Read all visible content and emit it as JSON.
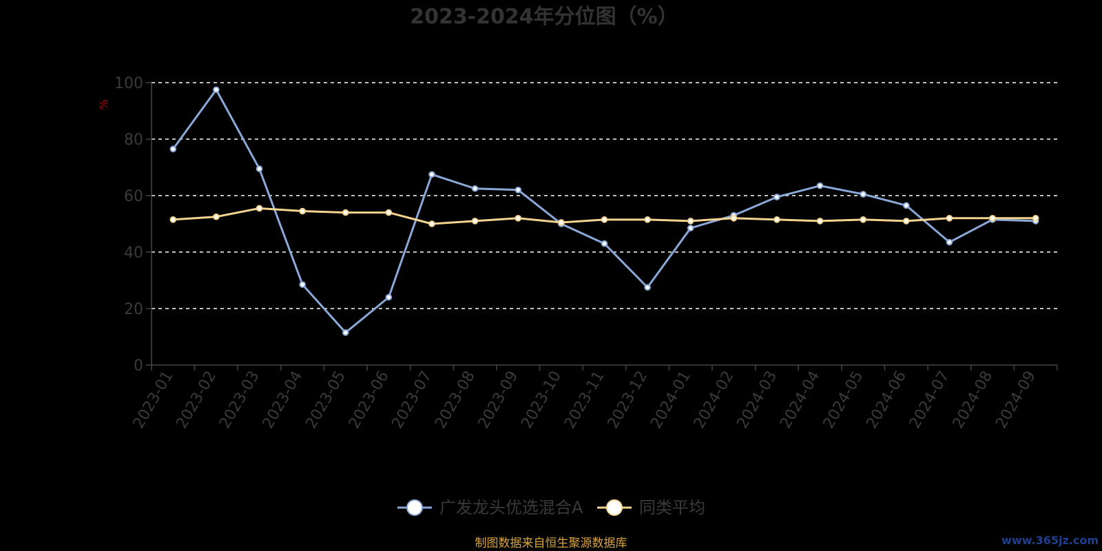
{
  "chart_data": {
    "type": "line",
    "title": "2023-2024年分位图（%）",
    "ylabel": "%",
    "xlabel": "",
    "ylim": [
      0,
      100
    ],
    "yticks": [
      0,
      20,
      40,
      60,
      80,
      100
    ],
    "grid": true,
    "legend_position": "bottom-center",
    "categories": [
      "2023-01",
      "2023-02",
      "2023-03",
      "2023-04",
      "2023-05",
      "2023-06",
      "2023-07",
      "2023-08",
      "2023-09",
      "2023-10",
      "2023-11",
      "2023-12",
      "2024-01",
      "2024-02",
      "2024-03",
      "2024-04",
      "2024-05",
      "2024-06",
      "2024-07",
      "2024-08",
      "2024-09"
    ],
    "series": [
      {
        "name": "广发龙头优选混合A",
        "color": "#8aa9d8",
        "values": [
          76.5,
          97.5,
          69.5,
          28.5,
          11.5,
          24,
          67.5,
          62.5,
          62,
          50,
          43,
          27.5,
          48.5,
          53,
          59.5,
          63.5,
          60.5,
          56.5,
          43.5,
          51.5,
          51
        ]
      },
      {
        "name": "同类平均",
        "color": "#f4d48f",
        "values": [
          51.5,
          52.5,
          55.5,
          54.5,
          54,
          54,
          50,
          51,
          52,
          50.5,
          51.5,
          51.5,
          51,
          52,
          51.5,
          51,
          51.5,
          51,
          52,
          52,
          52
        ]
      }
    ]
  },
  "footer": {
    "source": "制图数据来自恒生聚源数据库",
    "watermark": "www.365jz.com"
  }
}
